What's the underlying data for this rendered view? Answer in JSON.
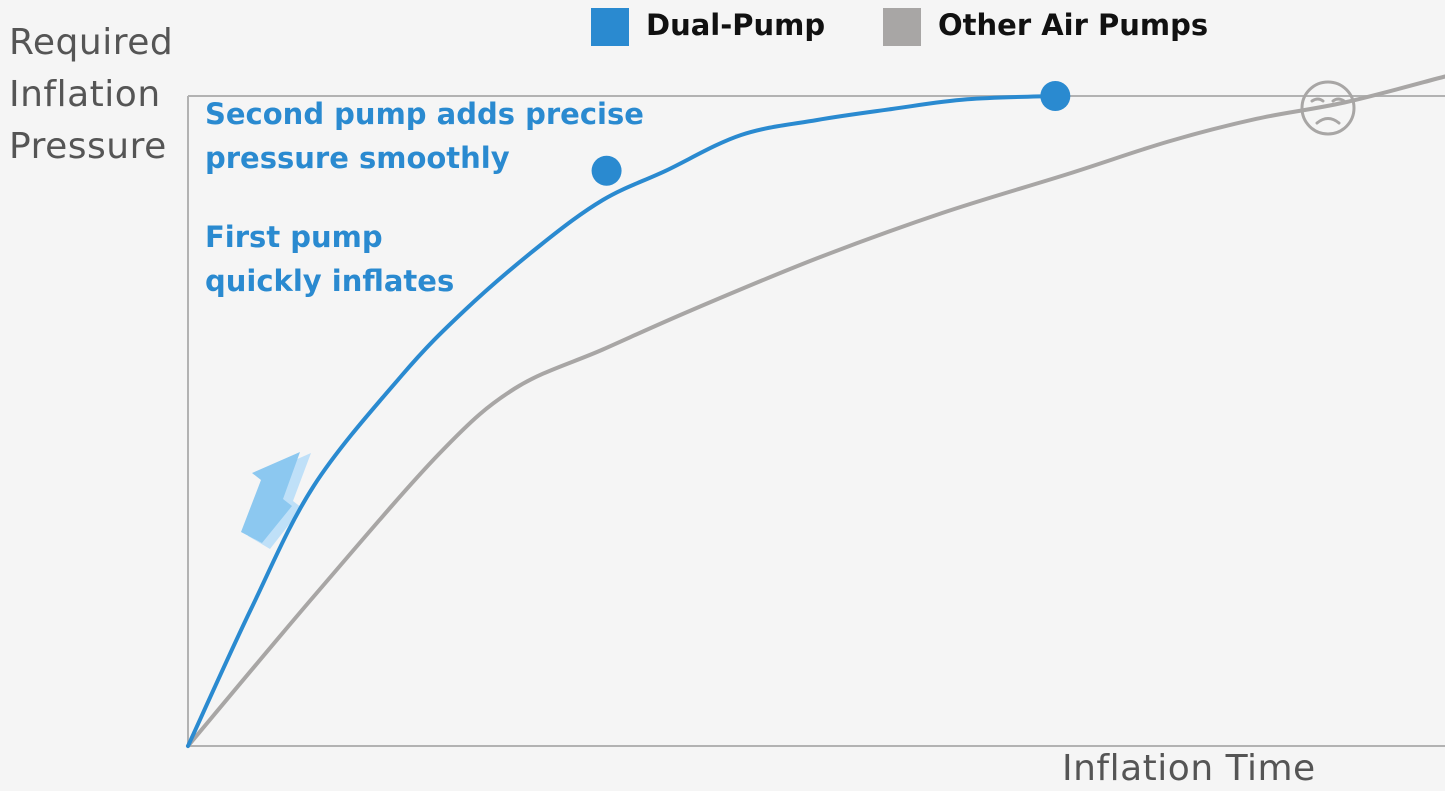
{
  "chart_data": {
    "type": "line",
    "ylabel_lines": [
      "Required",
      "Inflation",
      "Pressure"
    ],
    "xlabel": "Inflation Time",
    "xlim": [
      0,
      100
    ],
    "ylim": [
      0,
      100
    ],
    "target_pressure": 100,
    "legend_position": "top",
    "series": [
      {
        "name": "Dual-Pump",
        "color": "#2a8ad0",
        "x": [
          0,
          5,
          10,
          17,
          22,
          28,
          33,
          38,
          44,
          50,
          56,
          62,
          69
        ],
        "y": [
          0,
          21,
          40,
          57,
          67,
          77,
          84,
          88.5,
          94,
          96.3,
          98,
          99.5,
          100
        ],
        "markers": [
          {
            "x": 33.3,
            "y": 88.5
          },
          {
            "x": 69,
            "y": 100
          }
        ]
      },
      {
        "name": "Other Air Pumps",
        "color": "#a8a6a5",
        "x": [
          0,
          10,
          20,
          26,
          33,
          40,
          50,
          60,
          70,
          78,
          85,
          92,
          100
        ],
        "y": [
          0,
          23,
          45,
          55,
          61,
          67,
          75,
          82,
          88,
          93,
          96.5,
          99,
          103
        ]
      }
    ],
    "annotations": [
      {
        "lines": [
          "Second pump adds precise",
          "pressure smoothly"
        ]
      },
      {
        "lines": [
          "First pump",
          "quickly inflates"
        ]
      }
    ],
    "icons": [
      "frown-face-icon",
      "up-arrow-icon"
    ]
  }
}
